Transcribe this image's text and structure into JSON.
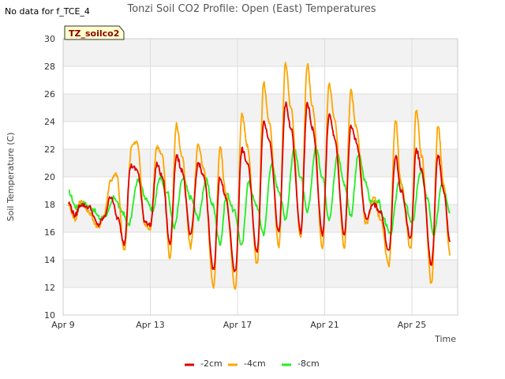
{
  "header": {
    "title": "Tonzi Soil CO2 Profile: Open (East) Temperatures",
    "no_data_note": "No data for f_TCE_4",
    "site_tag": "TZ_soilco2"
  },
  "colors": {
    "-2cm": "#dd0000",
    "-4cm": "#ffa500",
    "-8cm": "#22ee22",
    "band": "#f2f2f2",
    "grid": "#dddddd",
    "tag_fill": "#ffffcc"
  },
  "chart_data": {
    "type": "line",
    "title": "Tonzi Soil CO2 Profile: Open (East) Temperatures",
    "xlabel": "Time",
    "ylabel": "Soil Temperature (C)",
    "xlim": [
      9.0,
      27.1
    ],
    "ylim": [
      10,
      30
    ],
    "x_ticks": [
      9,
      13,
      17,
      21,
      25
    ],
    "x_tick_labels": [
      "Apr 9",
      "Apr 13",
      "Apr 17",
      "Apr 21",
      "Apr 25"
    ],
    "y_ticks": [
      10,
      12,
      14,
      16,
      18,
      20,
      22,
      24,
      26,
      28,
      30
    ],
    "y_tick_labels": [
      "10",
      "12",
      "14",
      "16",
      "18",
      "20",
      "22",
      "24",
      "26",
      "28",
      "30"
    ],
    "x_unit": "day of April",
    "grid": true,
    "legend_position": "bottom",
    "series": [
      {
        "name": "-2cm",
        "points": [
          [
            9.25,
            18.1
          ],
          [
            9.55,
            17.2
          ],
          [
            9.8,
            18.0
          ],
          [
            10.2,
            17.8
          ],
          [
            10.6,
            16.5
          ],
          [
            10.85,
            17.0
          ],
          [
            11.2,
            18.6
          ],
          [
            11.5,
            17.0
          ],
          [
            11.8,
            15.2
          ],
          [
            12.1,
            20.8
          ],
          [
            12.4,
            20.5
          ],
          [
            12.75,
            16.8
          ],
          [
            13.0,
            16.5
          ],
          [
            13.3,
            20.9
          ],
          [
            13.55,
            20.0
          ],
          [
            13.9,
            15.1
          ],
          [
            14.2,
            21.5
          ],
          [
            14.45,
            20.5
          ],
          [
            14.85,
            15.7
          ],
          [
            15.2,
            21.0
          ],
          [
            15.45,
            20.0
          ],
          [
            15.9,
            13.3
          ],
          [
            16.2,
            20.0
          ],
          [
            16.45,
            18.5
          ],
          [
            16.9,
            13.1
          ],
          [
            17.2,
            22.0
          ],
          [
            17.45,
            21.0
          ],
          [
            17.9,
            14.5
          ],
          [
            18.2,
            24.0
          ],
          [
            18.45,
            22.8
          ],
          [
            18.9,
            15.9
          ],
          [
            19.2,
            25.3
          ],
          [
            19.45,
            23.5
          ],
          [
            19.9,
            16.0
          ],
          [
            20.2,
            25.3
          ],
          [
            20.45,
            23.5
          ],
          [
            20.9,
            15.8
          ],
          [
            21.2,
            24.5
          ],
          [
            21.45,
            22.9
          ],
          [
            21.9,
            15.7
          ],
          [
            22.2,
            23.6
          ],
          [
            22.45,
            22.6
          ],
          [
            22.9,
            17.0
          ],
          [
            23.25,
            18.0
          ],
          [
            23.55,
            17.5
          ],
          [
            23.95,
            14.6
          ],
          [
            24.25,
            21.5
          ],
          [
            24.5,
            19.0
          ],
          [
            24.95,
            15.6
          ],
          [
            25.2,
            22.0
          ],
          [
            25.45,
            20.5
          ],
          [
            25.9,
            13.6
          ],
          [
            26.2,
            21.6
          ],
          [
            26.45,
            19.0
          ],
          [
            26.75,
            15.3
          ]
        ]
      },
      {
        "name": "-4cm",
        "points": [
          [
            9.25,
            18.0
          ],
          [
            9.55,
            16.9
          ],
          [
            9.8,
            18.3
          ],
          [
            10.2,
            17.4
          ],
          [
            10.6,
            16.3
          ],
          [
            10.85,
            17.1
          ],
          [
            11.2,
            19.8
          ],
          [
            11.45,
            20.2
          ],
          [
            11.8,
            14.6
          ],
          [
            12.15,
            22.3
          ],
          [
            12.4,
            22.5
          ],
          [
            12.75,
            16.5
          ],
          [
            13.0,
            16.3
          ],
          [
            13.3,
            22.2
          ],
          [
            13.55,
            21.5
          ],
          [
            13.9,
            14.1
          ],
          [
            14.2,
            23.8
          ],
          [
            14.45,
            21.5
          ],
          [
            14.85,
            14.9
          ],
          [
            15.2,
            22.4
          ],
          [
            15.45,
            20.5
          ],
          [
            15.9,
            11.9
          ],
          [
            16.2,
            22.2
          ],
          [
            16.45,
            19.0
          ],
          [
            16.9,
            11.8
          ],
          [
            17.2,
            24.6
          ],
          [
            17.45,
            22.3
          ],
          [
            17.9,
            13.6
          ],
          [
            18.2,
            26.8
          ],
          [
            18.45,
            24.0
          ],
          [
            18.9,
            15.0
          ],
          [
            19.2,
            28.2
          ],
          [
            19.45,
            25.0
          ],
          [
            19.9,
            15.5
          ],
          [
            20.2,
            28.1
          ],
          [
            20.45,
            25.0
          ],
          [
            20.9,
            14.7
          ],
          [
            21.2,
            26.8
          ],
          [
            21.45,
            24.2
          ],
          [
            21.9,
            14.8
          ],
          [
            22.2,
            26.2
          ],
          [
            22.45,
            23.6
          ],
          [
            22.9,
            16.6
          ],
          [
            23.25,
            18.5
          ],
          [
            23.55,
            17.0
          ],
          [
            23.95,
            13.5
          ],
          [
            24.25,
            24.2
          ],
          [
            24.5,
            19.5
          ],
          [
            24.95,
            14.7
          ],
          [
            25.2,
            24.9
          ],
          [
            25.45,
            21.5
          ],
          [
            25.9,
            12.2
          ],
          [
            26.2,
            23.8
          ],
          [
            26.45,
            19.5
          ],
          [
            26.75,
            14.3
          ]
        ]
      },
      {
        "name": "-8cm",
        "points": [
          [
            9.25,
            18.9
          ],
          [
            9.6,
            17.8
          ],
          [
            9.9,
            18.1
          ],
          [
            10.3,
            17.8
          ],
          [
            10.7,
            17.0
          ],
          [
            11.0,
            17.3
          ],
          [
            11.35,
            18.5
          ],
          [
            11.7,
            17.5
          ],
          [
            12.0,
            16.5
          ],
          [
            12.45,
            19.8
          ],
          [
            12.8,
            18.5
          ],
          [
            13.1,
            17.6
          ],
          [
            13.45,
            19.9
          ],
          [
            13.75,
            19.0
          ],
          [
            14.1,
            16.4
          ],
          [
            14.5,
            19.9
          ],
          [
            14.85,
            18.5
          ],
          [
            15.2,
            17.0
          ],
          [
            15.55,
            19.8
          ],
          [
            15.85,
            18.0
          ],
          [
            16.2,
            15.2
          ],
          [
            16.5,
            18.8
          ],
          [
            16.85,
            17.5
          ],
          [
            17.2,
            15.0
          ],
          [
            17.5,
            19.6
          ],
          [
            17.85,
            18.0
          ],
          [
            18.2,
            15.9
          ],
          [
            18.55,
            20.9
          ],
          [
            18.9,
            19.0
          ],
          [
            19.2,
            17.0
          ],
          [
            19.6,
            22.0
          ],
          [
            19.9,
            20.0
          ],
          [
            20.2,
            17.4
          ],
          [
            20.6,
            22.1
          ],
          [
            20.9,
            20.0
          ],
          [
            21.2,
            17.0
          ],
          [
            21.6,
            21.6
          ],
          [
            21.9,
            19.5
          ],
          [
            22.2,
            17.2
          ],
          [
            22.55,
            21.6
          ],
          [
            22.9,
            19.5
          ],
          [
            23.1,
            18.2
          ],
          [
            23.45,
            18.3
          ],
          [
            23.7,
            17.0
          ],
          [
            24.0,
            15.8
          ],
          [
            24.45,
            19.9
          ],
          [
            24.7,
            18.0
          ],
          [
            25.0,
            16.6
          ],
          [
            25.4,
            20.4
          ],
          [
            25.7,
            18.5
          ],
          [
            26.0,
            15.7
          ],
          [
            26.4,
            19.7
          ],
          [
            26.75,
            17.5
          ]
        ]
      }
    ]
  }
}
